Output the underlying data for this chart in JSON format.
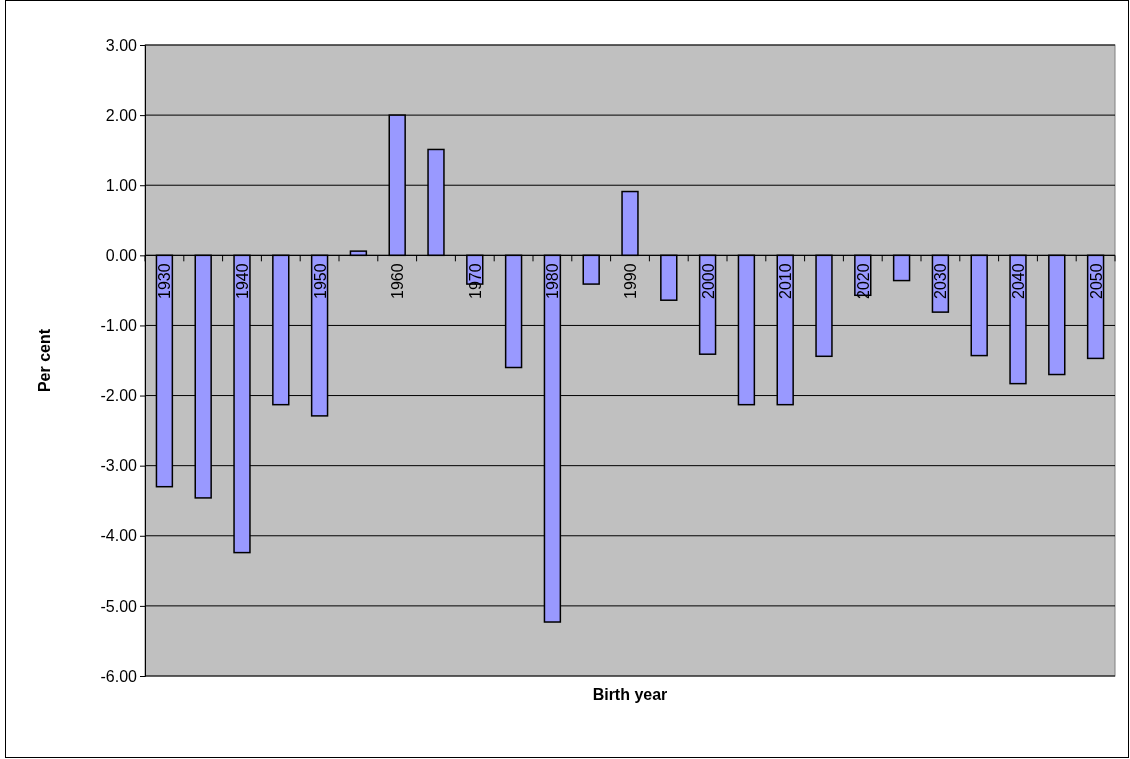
{
  "chart_data": {
    "type": "bar",
    "xlabel": "Birth year",
    "ylabel": "Per cent",
    "categories": [
      "1930",
      null,
      "1940",
      null,
      "1950",
      null,
      "1960",
      null,
      "1970",
      null,
      "1980",
      null,
      "1990",
      null,
      "2000",
      null,
      "2010",
      null,
      "2020",
      null,
      "2030",
      null,
      "2040",
      null,
      "2050"
    ],
    "values": [
      -3.3,
      -3.46,
      -4.24,
      -2.13,
      -2.29,
      0.06,
      2.0,
      1.51,
      -0.41,
      -1.6,
      -5.23,
      -0.41,
      0.91,
      -0.64,
      -1.41,
      -2.13,
      -2.13,
      -1.44,
      -0.57,
      -0.36,
      -0.81,
      -1.43,
      -1.83,
      -1.7,
      -1.47
    ],
    "color": "#9999ff",
    "ylim": [
      -6,
      3
    ],
    "yticks": [
      {
        "value": -6,
        "label": "-6.00"
      },
      {
        "value": -5,
        "label": "-5.00"
      },
      {
        "value": -4,
        "label": "-4.00"
      },
      {
        "value": -3,
        "label": "-3.00"
      },
      {
        "value": -2,
        "label": "-2.00"
      },
      {
        "value": -1,
        "label": "-1.00"
      },
      {
        "value": 0,
        "label": "0.00"
      },
      {
        "value": 1,
        "label": "1.00"
      },
      {
        "value": 2,
        "label": "2.00"
      },
      {
        "value": 3,
        "label": "3.00"
      }
    ],
    "grid": "y"
  }
}
